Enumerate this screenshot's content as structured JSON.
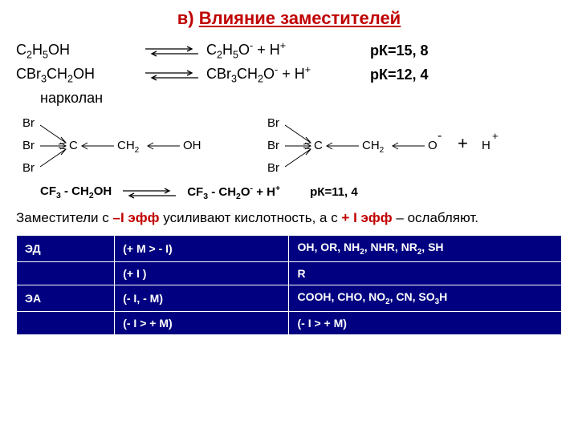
{
  "title_a": "в) ",
  "title_b": "Влияние заместителей",
  "reactions": [
    {
      "left": "C<sub>2</sub>H<sub>5</sub>OH",
      "right": "C<sub>2</sub>H<sub>5</sub>O<sup>-</sup> + H<sup>+</sup>",
      "pk": "рК=15, 8"
    },
    {
      "left": "CBr<sub>3</sub>CH<sub>2</sub>OH",
      "right": "CBr<sub>3</sub>CH<sub>2</sub>O<sup>-</sup> + H<sup>+</sup>",
      "pk": "рК=12, 4"
    }
  ],
  "annot": "нарколан",
  "reaction3": {
    "left": "CF<sub>3</sub> - CH<sub>2</sub>OH",
    "right": "CF<sub>3</sub> - CH<sub>2</sub>O<sup>-</sup> + H<sup>+</sup>",
    "pk": "рК=11, 4"
  },
  "summary_parts": [
    "Заместители с ",
    "–I эфф",
    " усиливают кислотность,  а с ",
    "+ I эфф",
    " – ослабляют."
  ],
  "table": {
    "rows": [
      [
        "ЭД",
        "(+ M > - I)",
        "OH, OR, NH<sub>2</sub>, NHR, NR<sub>2</sub>, SH"
      ],
      [
        "",
        "(+ I )",
        " R"
      ],
      [
        "ЭА",
        "(- I, - M)",
        "COOH, CHO, NO<sub>2</sub>, CN, SO<sub>3</sub>H"
      ],
      [
        "",
        "(- I > + M)",
        "(- I > + M)"
      ]
    ]
  },
  "diagram": {
    "left": {
      "br": "Br",
      "c": "C",
      "ch2": "CH",
      "oh": "OH"
    },
    "right": {
      "br": "Br",
      "c": "C",
      "ch2": "CH",
      "o": "O",
      "h": "H"
    }
  },
  "colors": {
    "title": "#c00000",
    "table_bg": "#000080",
    "table_fg": "#ffffff"
  }
}
